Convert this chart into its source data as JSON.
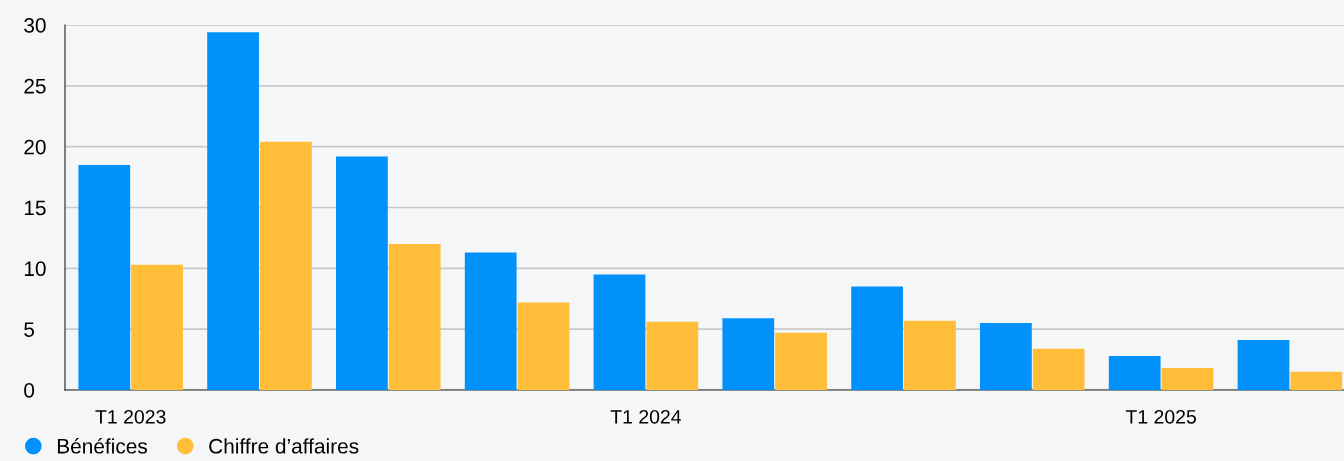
{
  "chart_data": {
    "type": "bar",
    "categories": [
      "T1 2023",
      null,
      null,
      null,
      "T1 2024",
      null,
      null,
      null,
      "T1 2025",
      null
    ],
    "series": [
      {
        "name": "Bénéfices",
        "color": "#0091fb",
        "values": [
          18.5,
          29.4,
          19.2,
          11.3,
          9.5,
          5.9,
          8.5,
          5.5,
          2.8,
          4.1
        ]
      },
      {
        "name": "Chiffre d’affaires",
        "color": "#ffbd39",
        "values": [
          10.3,
          20.4,
          12.0,
          7.2,
          5.6,
          4.7,
          5.7,
          3.4,
          1.8,
          1.5
        ]
      }
    ],
    "ylim": [
      0,
      30
    ],
    "yticks": [
      0,
      5,
      10,
      15,
      20,
      25,
      30
    ],
    "grid": "y",
    "legend": "bottom left",
    "marker": "circle"
  }
}
